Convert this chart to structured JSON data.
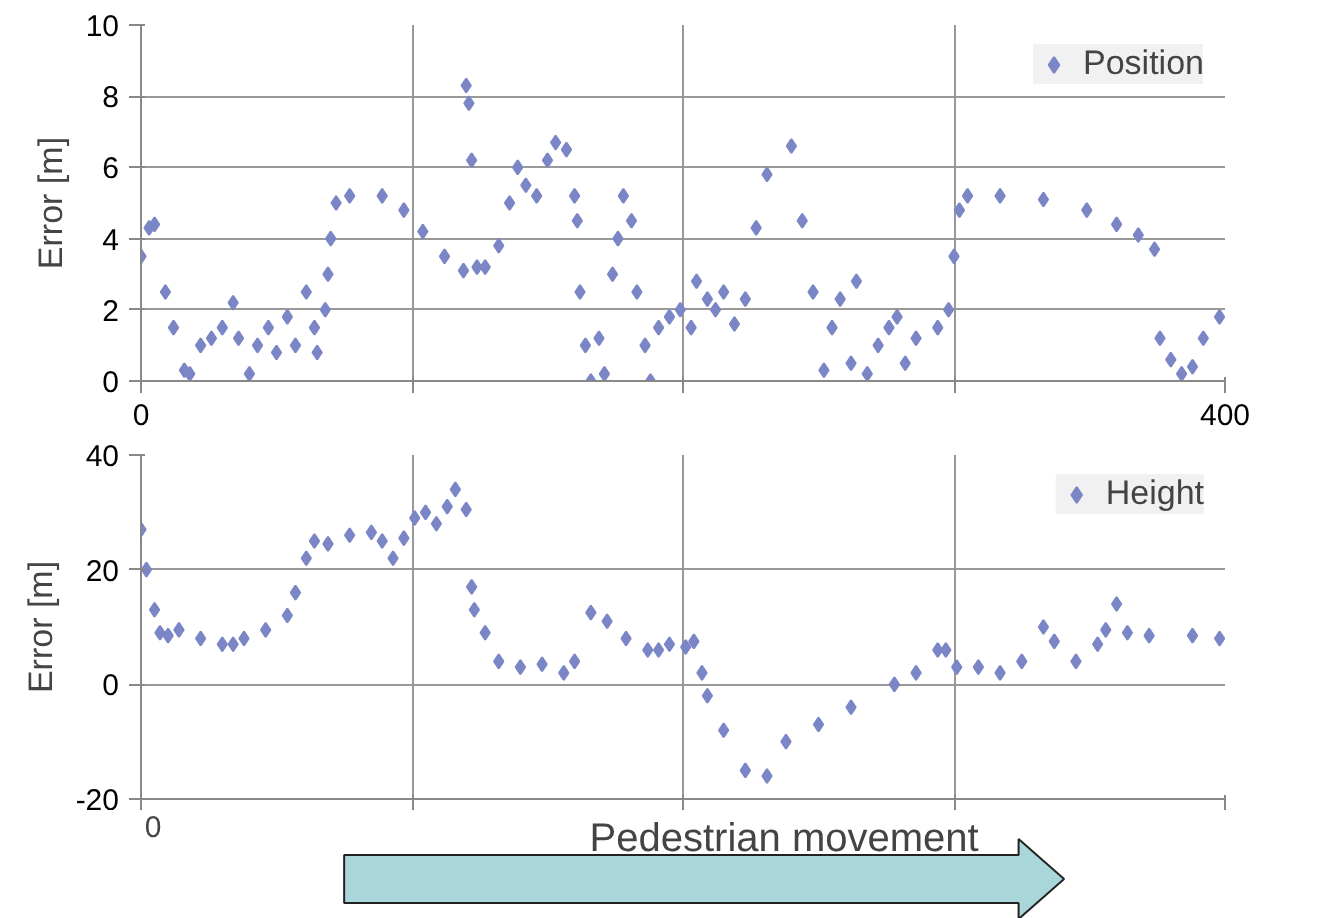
{
  "chart_data": [
    {
      "type": "scatter",
      "ylabel": "Error [m]",
      "marker": "diamond",
      "legend": "top right",
      "grid": true,
      "xlim": [
        0,
        400
      ],
      "ylim": [
        0,
        10
      ],
      "xticks": [
        0,
        {
          "value": 100,
          "label": null
        },
        {
          "value": 200,
          "label": null
        },
        {
          "value": 300,
          "label": null
        },
        400
      ],
      "yticks": [
        0,
        2,
        4,
        6,
        8,
        10
      ],
      "series": [
        {
          "name": "Position",
          "color": "#7b86c6",
          "x": [
            0,
            3,
            5,
            9,
            12,
            16,
            18,
            22,
            26,
            30,
            34,
            36,
            40,
            43,
            47,
            50,
            54,
            57,
            61,
            64,
            65,
            68,
            69,
            70,
            72,
            77,
            89,
            97,
            104,
            112,
            119,
            120,
            121,
            122,
            124,
            127,
            132,
            136,
            139,
            142,
            146,
            150,
            153,
            157,
            160,
            161,
            162,
            164,
            166,
            169,
            171,
            174,
            176,
            178,
            181,
            183,
            186,
            188,
            191,
            195,
            199,
            203,
            205,
            209,
            212,
            215,
            219,
            223,
            227,
            231,
            240,
            244,
            248,
            252,
            255,
            258,
            262,
            264,
            268,
            272,
            276,
            279,
            282,
            286,
            294,
            298,
            300,
            302,
            305,
            317,
            333,
            349,
            360,
            368,
            374,
            376,
            380,
            384,
            388,
            392,
            398
          ],
          "values": [
            3.5,
            4.3,
            4.4,
            2.5,
            1.5,
            0.3,
            0.2,
            1,
            1.2,
            1.5,
            2.2,
            1.2,
            0.2,
            1,
            1.5,
            0.8,
            1.8,
            1,
            2.5,
            1.5,
            0.8,
            2,
            3,
            4,
            5,
            5.2,
            5.2,
            4.8,
            4.2,
            3.5,
            3.1,
            8.3,
            7.8,
            6.2,
            3.2,
            3.2,
            3.8,
            5,
            6,
            5.5,
            5.2,
            6.2,
            6.7,
            6.5,
            5.2,
            4.5,
            2.5,
            1,
            0,
            1.2,
            0.2,
            3,
            4,
            5.2,
            4.5,
            2.5,
            1,
            0,
            1.5,
            1.8,
            2,
            1.5,
            2.8,
            2.3,
            2,
            2.5,
            1.6,
            2.3,
            4.3,
            5.8,
            6.6,
            4.5,
            2.5,
            0.3,
            1.5,
            2.3,
            0.5,
            2.8,
            0.2,
            1,
            1.5,
            1.8,
            0.5,
            1.2,
            1.5,
            2,
            3.5,
            4.8,
            5.2,
            5.2,
            5.1,
            4.8,
            4.4,
            4.1,
            3.7,
            1.2,
            0.6,
            0.2,
            0.4,
            1.2,
            1.8
          ]
        }
      ]
    },
    {
      "type": "scatter",
      "ylabel": "Error [m]",
      "marker": "diamond",
      "legend": "top right",
      "grid": true,
      "xlim": [
        0,
        400
      ],
      "ylim": [
        -20,
        40
      ],
      "tick_labels": "y",
      "yticks": [
        -20,
        0,
        20,
        40
      ],
      "annotations": [
        "0",
        "Pedestrian movement"
      ],
      "series": [
        {
          "name": "Height",
          "color": "#7b86c6",
          "x": [
            0,
            2,
            5,
            7,
            10,
            14,
            22,
            30,
            34,
            38,
            46,
            54,
            57,
            61,
            64,
            69,
            77,
            85,
            89,
            93,
            97,
            101,
            105,
            109,
            113,
            116,
            120,
            122,
            123,
            127,
            132,
            140,
            148,
            156,
            160,
            166,
            172,
            179,
            187,
            191,
            195,
            201,
            204,
            207,
            209,
            215,
            223,
            231,
            238,
            250,
            262,
            278,
            286,
            294,
            297,
            301,
            309,
            317,
            325,
            333,
            337,
            345,
            353,
            356,
            360,
            364,
            372,
            388,
            398
          ],
          "values": [
            27,
            20,
            13,
            9,
            8.5,
            9.5,
            8,
            7,
            7,
            8,
            9.5,
            12,
            16,
            22,
            25,
            24.5,
            26,
            26.5,
            25,
            22,
            25.5,
            29,
            30,
            28,
            31,
            34,
            30.5,
            17,
            13,
            9,
            4,
            3,
            3.5,
            2,
            4,
            12.5,
            11,
            8,
            6,
            6,
            7,
            6.5,
            7.5,
            2,
            -2,
            -8,
            -15,
            -16,
            -10,
            -7,
            -4,
            0,
            2,
            6,
            6,
            3,
            3,
            2,
            4,
            10,
            7.5,
            4,
            7,
            9.5,
            14,
            9,
            8.5,
            8.5,
            8
          ]
        }
      ]
    }
  ]
}
